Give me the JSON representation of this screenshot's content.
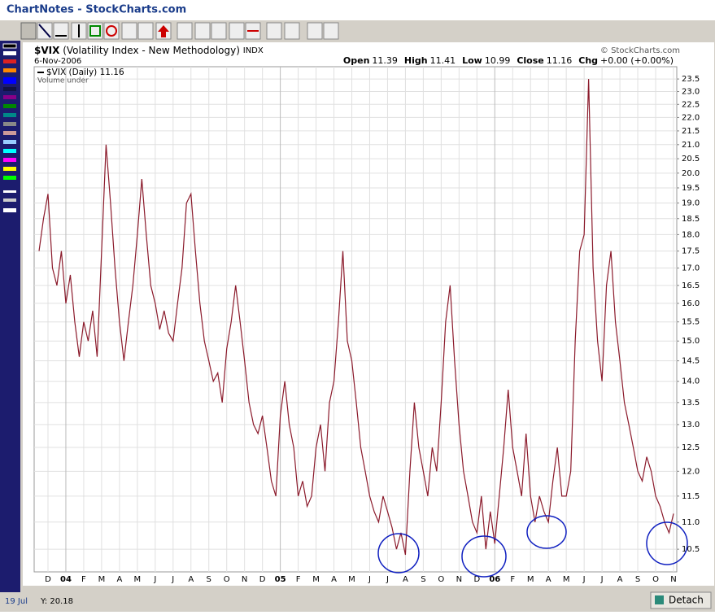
{
  "window": {
    "title": "ChartNotes - StockCharts.com"
  },
  "copyright": "© StockCharts.com",
  "status": {
    "x": "19 Jul",
    "y": "Y: 20.18",
    "button": "Detach"
  },
  "quote": [
    {
      "label": "Open",
      "value": "11.39"
    },
    {
      "label": "High",
      "value": "11.41"
    },
    {
      "label": "Low",
      "value": "10.99"
    },
    {
      "label": "Close",
      "value": "11.16"
    },
    {
      "label": "Chg",
      "value": "+0.00 (+0.00%)"
    }
  ],
  "chart_data": {
    "type": "line",
    "title": "$VIX",
    "subtitle": "(Volatility Index - New Methodology)",
    "exchange": "INDX",
    "date": "6-Nov-2006",
    "volume_note": "Volume under",
    "log": true,
    "grid": true,
    "ylim": [
      10.1,
      24.0
    ],
    "yticks": [
      10.5,
      {
        "value": 11,
        "label": "11.0"
      },
      11.5,
      {
        "value": 12,
        "label": "12.0"
      },
      12.5,
      {
        "value": 13,
        "label": "13.0"
      },
      13.5,
      {
        "value": 14,
        "label": "14.0"
      },
      14.5,
      {
        "value": 15,
        "label": "15.0"
      },
      15.5,
      {
        "value": 16,
        "label": "16.0"
      },
      16.5,
      {
        "value": 17,
        "label": "17.0"
      },
      17.5,
      {
        "value": 18,
        "label": "18.0"
      },
      18.5,
      {
        "value": 19,
        "label": "19.0"
      },
      19.5,
      {
        "value": 20,
        "label": "20.0"
      },
      20.5,
      {
        "value": 21,
        "label": "21.0"
      },
      21.5,
      {
        "value": 22,
        "label": "22.0"
      },
      22.5,
      {
        "value": 23,
        "label": "23.0"
      },
      23.5
    ],
    "categories": [
      null,
      null,
      "D",
      null,
      null,
      null,
      "04",
      null,
      null,
      null,
      "F",
      null,
      null,
      null,
      "M",
      null,
      null,
      null,
      "A",
      null,
      null,
      null,
      "M",
      null,
      null,
      null,
      "J",
      null,
      null,
      null,
      "J",
      null,
      null,
      null,
      "A",
      null,
      null,
      null,
      "S",
      null,
      null,
      null,
      "O",
      null,
      null,
      null,
      "N",
      null,
      null,
      null,
      "D",
      null,
      null,
      null,
      "05",
      null,
      null,
      null,
      "F",
      null,
      null,
      null,
      "M",
      null,
      null,
      null,
      "A",
      null,
      null,
      null,
      "M",
      null,
      null,
      null,
      "J",
      null,
      null,
      null,
      "J",
      null,
      null,
      null,
      "A",
      null,
      null,
      null,
      "S",
      null,
      null,
      null,
      "O",
      null,
      null,
      null,
      "N",
      null,
      null,
      null,
      "D",
      null,
      null,
      null,
      "06",
      null,
      null,
      null,
      "F",
      null,
      null,
      null,
      "M",
      null,
      null,
      null,
      "A",
      null,
      null,
      null,
      "M",
      null,
      null,
      null,
      "J",
      null,
      null,
      null,
      "J",
      null,
      null,
      null,
      "A",
      null,
      null,
      null,
      "S",
      null,
      null,
      null,
      "O",
      null,
      null,
      null,
      "N"
    ],
    "series": [
      {
        "name": "$VIX (Daily)",
        "color": "#8b1a2b",
        "values": [
          17.5,
          18.5,
          19.3,
          17.0,
          16.5,
          17.5,
          16.0,
          16.8,
          15.5,
          14.6,
          15.5,
          15.0,
          15.8,
          14.6,
          17.5,
          21.0,
          19.0,
          17.0,
          15.5,
          14.5,
          15.5,
          16.5,
          18.0,
          19.8,
          18.0,
          16.5,
          16.0,
          15.3,
          15.8,
          15.2,
          15.0,
          16.0,
          17.0,
          19.0,
          19.3,
          17.5,
          16.0,
          15.0,
          14.5,
          14.0,
          14.2,
          13.5,
          14.8,
          15.5,
          16.5,
          15.5,
          14.5,
          13.5,
          13.0,
          12.8,
          13.2,
          12.5,
          11.8,
          11.5,
          13.2,
          14.0,
          13.0,
          12.5,
          11.5,
          11.8,
          11.3,
          11.5,
          12.5,
          13.0,
          12.0,
          13.5,
          14.0,
          15.5,
          17.5,
          15.0,
          14.5,
          13.5,
          12.5,
          12.0,
          11.5,
          11.2,
          11.0,
          11.5,
          11.2,
          10.9,
          10.5,
          10.8,
          10.4,
          12.0,
          13.5,
          12.5,
          12.0,
          11.5,
          12.5,
          12.0,
          13.5,
          15.5,
          16.5,
          14.5,
          13.0,
          12.0,
          11.5,
          11.0,
          10.8,
          11.5,
          10.5,
          11.2,
          10.6,
          11.5,
          12.5,
          13.8,
          12.5,
          12.0,
          11.5,
          12.8,
          11.5,
          11.0,
          11.5,
          11.2,
          11.0,
          11.8,
          12.5,
          11.5,
          11.5,
          12.0,
          15.0,
          17.5,
          18.0,
          23.5,
          17.0,
          15.0,
          14.0,
          16.5,
          17.5,
          15.5,
          14.5,
          13.5,
          13.0,
          12.5,
          12.0,
          11.8,
          12.3,
          12.0,
          11.5,
          11.3,
          11.0,
          10.8,
          11.16
        ]
      }
    ]
  }
}
